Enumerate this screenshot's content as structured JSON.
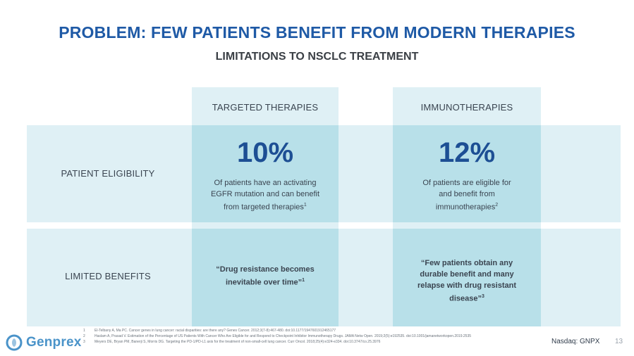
{
  "slide": {
    "title": "PROBLEM: FEW PATIENTS BENEFIT FROM MODERN THERAPIES",
    "subtitle": "LIMITATIONS TO NSCLC TREATMENT"
  },
  "columns": [
    {
      "label": "TARGETED THERAPIES"
    },
    {
      "label": "IMMUNOTHERAPIES"
    }
  ],
  "rows": [
    {
      "label": "PATIENT ELIGIBILITY"
    },
    {
      "label": "LIMITED BENEFITS"
    }
  ],
  "eligibility": [
    {
      "stat": "10%",
      "lines": [
        "Of patients have an activating",
        "EGFR mutation and can benefit",
        "from targeted therapies"
      ],
      "footnote": "1"
    },
    {
      "stat": "12%",
      "lines": [
        "Of patients are eligible for",
        "and benefit from",
        "immunotherapies"
      ],
      "footnote": "2"
    }
  ],
  "benefits": [
    {
      "lines": [
        "“Drug resistance becomes",
        "inevitable over time”"
      ],
      "footnote": "1"
    },
    {
      "lines": [
        "“Few patients obtain any",
        "durable benefit and many",
        "relapse with drug resistant",
        "disease”"
      ],
      "footnote": "3"
    }
  ],
  "references": [
    {
      "num": "1",
      "text": "El-Telbany A, Ma PC. Cancer genes in lung cancer: racial disparities: are there any? Genes Cancer. 2012;3(7-8):467-480. doi:10.1177/1947601912465177"
    },
    {
      "num": "2",
      "text": "Haslam A, Prasad V. Estimation of the Percentage of US Patients With Cancer Who Are Eligible for and Respond to Checkpoint Inhibitor Immunotherapy Drugs. JAMA Netw Open. 2019;2(5):e192535. doi:10.1001/jamanetworkopen.2019.2535"
    },
    {
      "num": "3",
      "text": "Meyers DE, Bryan PM, Banerji S, Morris DG. Targeting the PD-1/PD-L1 axis for the treatment of non-small-cell lung cancer. Curr Oncol. 2018;25(4):e324-e334. doi:10.3747/co.25.3976"
    }
  ],
  "footer": {
    "logo_text": "Genprex",
    "ticker": "Nasdaq: GNPX",
    "page_number": "13"
  },
  "colors": {
    "title": "#1f5aa6",
    "stat": "#1d4f94",
    "light_band": "#dff0f5",
    "cell": "#b8e0e9",
    "logo": "#4a93c9"
  }
}
